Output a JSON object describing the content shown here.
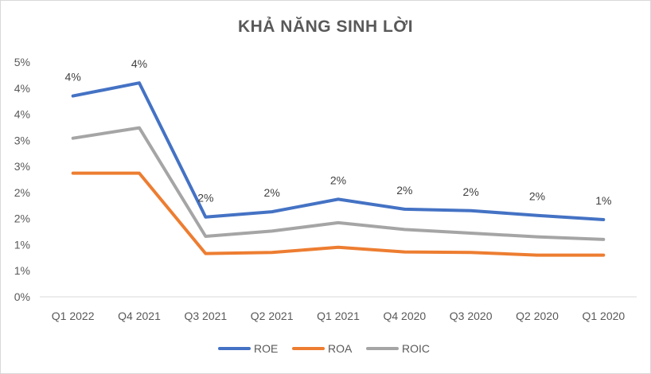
{
  "chart_data": {
    "type": "line",
    "title": "KHẢ NĂNG SINH LỜI",
    "xlabel": "",
    "ylabel": "",
    "categories": [
      "Q1 2022",
      "Q4 2021",
      "Q3 2021",
      "Q2 2021",
      "Q1 2021",
      "Q4 2020",
      "Q3 2020",
      "Q2 2020",
      "Q1 2020"
    ],
    "ylim": [
      0,
      4.5
    ],
    "y_ticks": [
      0,
      0.5,
      1,
      1.5,
      2,
      2.5,
      3,
      3.5,
      4,
      4.5
    ],
    "y_tick_labels": [
      "0%",
      "1%",
      "1%",
      "2%",
      "2%",
      "3%",
      "3%",
      "4%",
      "4%",
      "5%"
    ],
    "grid": false,
    "legend_position": "bottom",
    "series": [
      {
        "name": "ROE",
        "color": "#4472c4",
        "values": [
          3.85,
          4.1,
          1.53,
          1.63,
          1.87,
          1.68,
          1.65,
          1.56,
          1.48
        ],
        "data_labels": [
          "4%",
          "4%",
          "2%",
          "2%",
          "2%",
          "2%",
          "2%",
          "2%",
          "1%"
        ]
      },
      {
        "name": "ROA",
        "color": "#ed7d31",
        "values": [
          2.37,
          2.37,
          0.83,
          0.85,
          0.95,
          0.86,
          0.85,
          0.8,
          0.8
        ],
        "data_labels": []
      },
      {
        "name": "ROIC",
        "color": "#a5a5a5",
        "values": [
          3.04,
          3.24,
          1.16,
          1.26,
          1.42,
          1.29,
          1.22,
          1.15,
          1.1
        ],
        "data_labels": []
      }
    ]
  }
}
